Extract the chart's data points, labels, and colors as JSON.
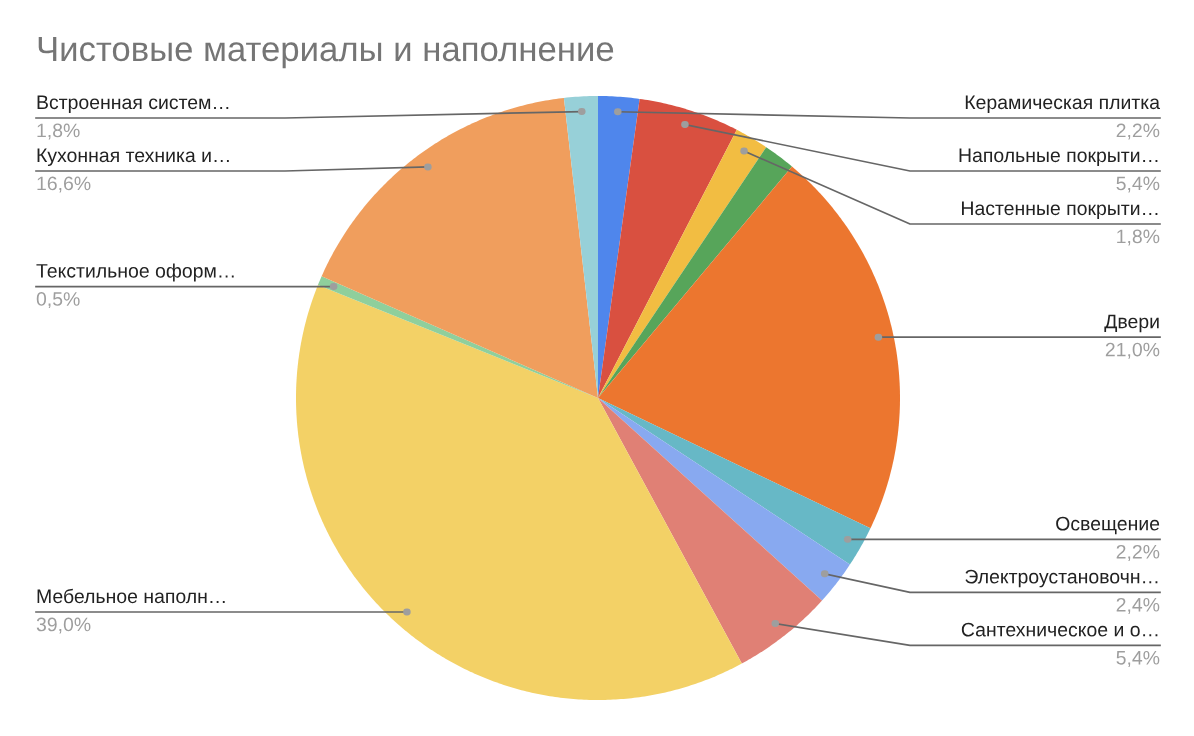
{
  "chart_data": {
    "type": "pie",
    "title": "Чистовые материалы и наполнение",
    "categories": [
      "Керамическая плитка",
      "Напольные покрыти…",
      "Настенные покрыти…",
      null,
      "Двери",
      "Освещение",
      "Электроустановочн…",
      "Сантехническое и о…",
      "Мебельное наполн…",
      "Текстильное оформ…",
      "Кухонная техника и…",
      "Встроенная систем…"
    ],
    "values": [
      2.2,
      5.4,
      1.8,
      1.7,
      21.0,
      2.2,
      2.4,
      5.4,
      39.0,
      0.5,
      16.6,
      1.8
    ],
    "value_labels": [
      "2,2%",
      "5,4%",
      "1,8%",
      null,
      "21,0%",
      "2,2%",
      "2,4%",
      "5,4%",
      "39,0%",
      "0,5%",
      "16,6%",
      "1,8%"
    ],
    "colors": [
      "#4f86ec",
      "#d95040",
      "#f2bd42",
      "#57a55a",
      "#ec762f",
      "#67b8c6",
      "#88a9f0",
      "#e08075",
      "#f3d166",
      "#8fcf9c",
      "#f09e5d",
      "#97d0d8"
    ]
  }
}
